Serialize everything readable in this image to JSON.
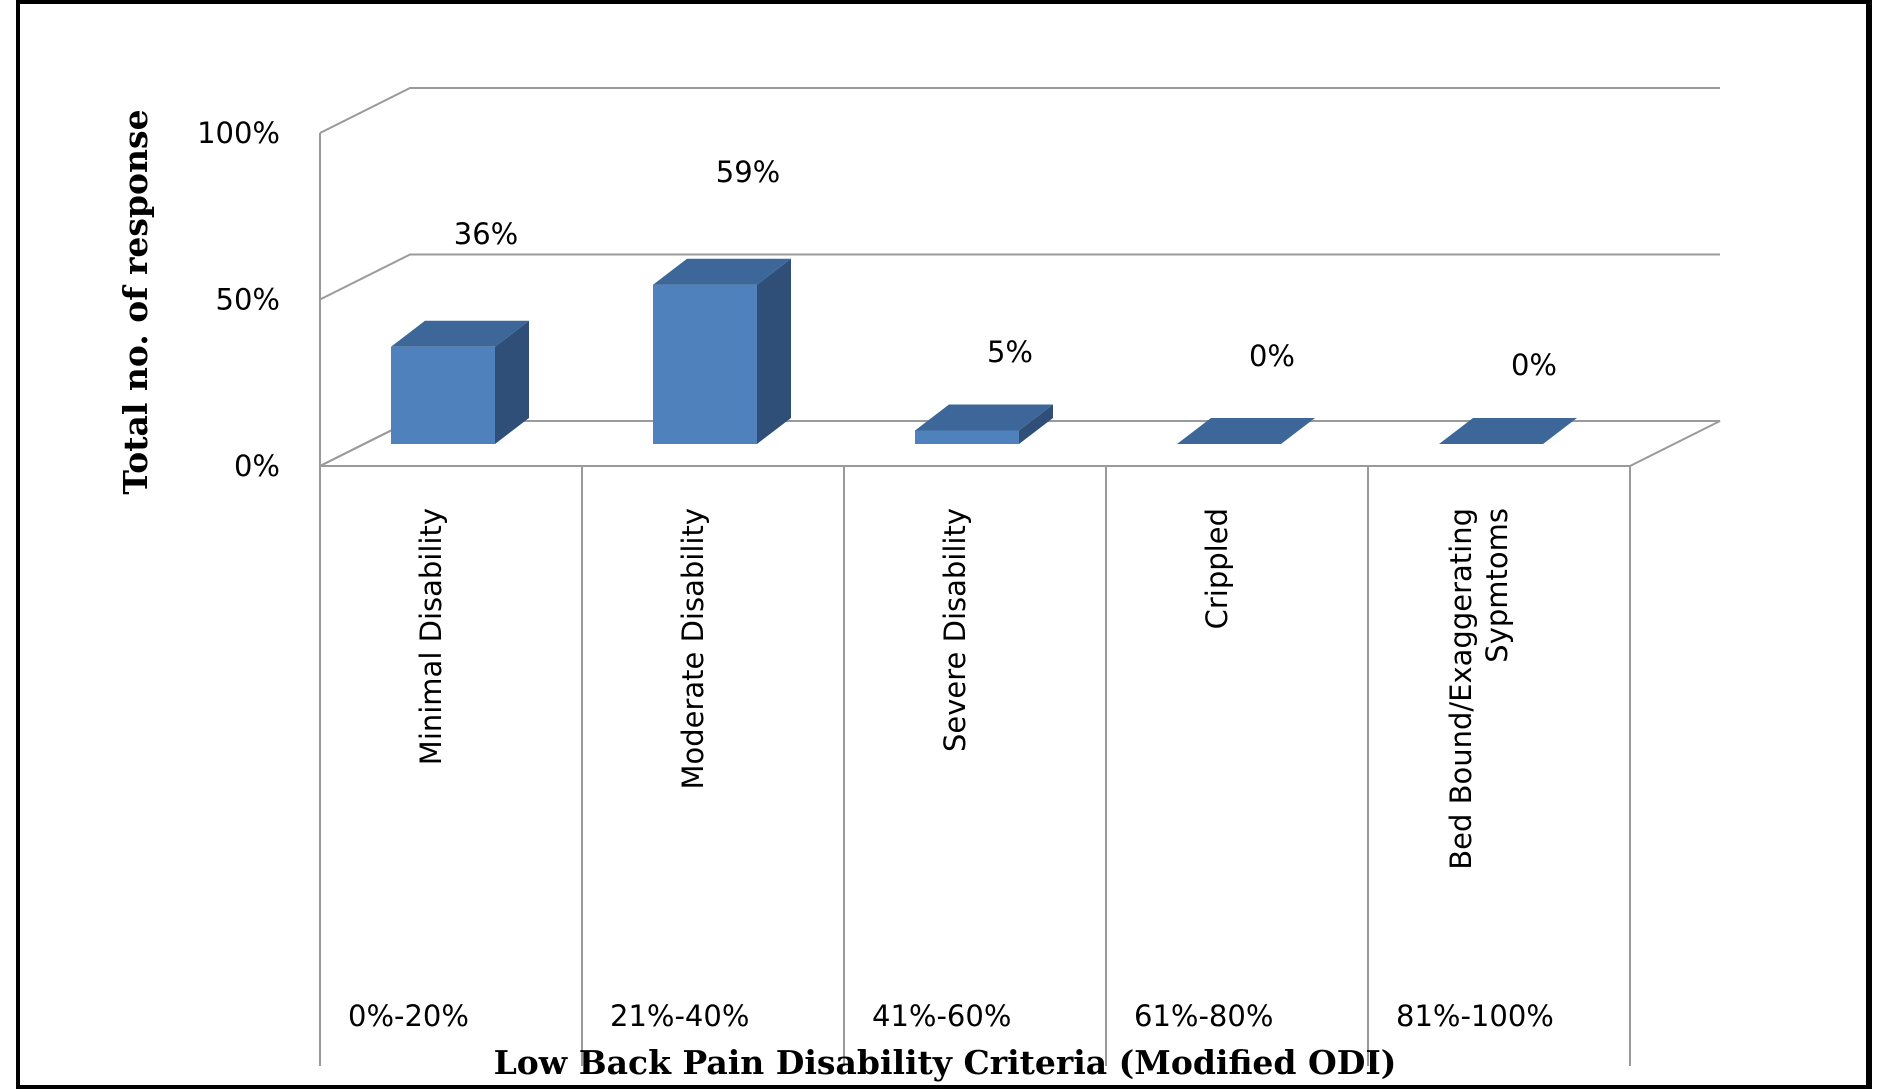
{
  "chart_data": {
    "type": "bar",
    "title": "",
    "xlabel": "Low Back Pain Disability Criteria (Modified  ODI)",
    "ylabel": "Total no. of  response",
    "ylim": [
      0,
      100
    ],
    "yticks": [
      "0%",
      "50%",
      "100%"
    ],
    "categories": [
      "Minimal Disability",
      "Moderate Disability",
      "Severe Disability",
      "Crippled",
      "Bed Bound/Exaggerating Sypmtoms"
    ],
    "category_lines": [
      [
        "Minimal Disability"
      ],
      [
        "Moderate Disability"
      ],
      [
        "Severe Disability"
      ],
      [
        "Crippled"
      ],
      [
        "Bed Bound/Exaggerating",
        "Sypmtoms"
      ]
    ],
    "ranges": [
      "0%-20%",
      "21%-40%",
      "41%-60%",
      "61%-80%",
      "81%-100%"
    ],
    "values": [
      36,
      59,
      5,
      0,
      0
    ],
    "data_labels": [
      "36%",
      "59%",
      "5%",
      "0%",
      "0%"
    ],
    "style": "3d-column",
    "grid": true,
    "legend": "none",
    "colors": {
      "bar_front": "#4f81bd",
      "bar_side": "#2f4f78",
      "bar_top": "#3d6699",
      "grid": "#9a9a9a",
      "frame": "#000000"
    }
  }
}
